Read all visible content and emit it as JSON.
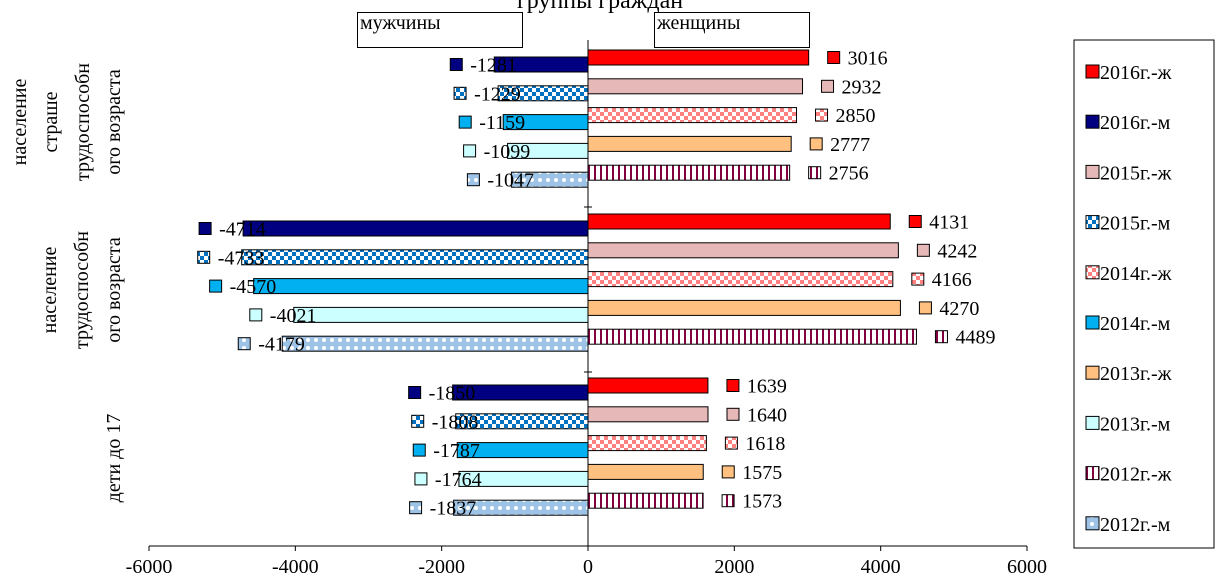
{
  "chart_data": {
    "type": "bar",
    "orientation": "horizontal",
    "title": "группы граждан",
    "header_labels": {
      "left": "мужчины",
      "right": "женщины"
    },
    "categories": [
      "население страше трудоспособн ого возраста",
      "население трудоспособн ого возраста",
      "дети до 17"
    ],
    "category_lines": [
      [
        "население",
        "страше",
        "трудоспособн",
        "ого возраста"
      ],
      [
        "население",
        "трудоспособн",
        "ого возраста"
      ],
      [
        "дети до 17"
      ]
    ],
    "xlim": [
      -6000,
      6000
    ],
    "x_ticks": [
      -6000,
      -4000,
      -2000,
      0,
      2000,
      4000,
      6000
    ],
    "legend_position": "right",
    "series": [
      {
        "name": "2016г.-ж",
        "color": "#ff0000",
        "pattern": "solid",
        "values": [
          3016,
          4131,
          1639
        ]
      },
      {
        "name": "2015г.-ж",
        "color": "#e6b8b8",
        "pattern": "solid",
        "values": [
          2932,
          4242,
          1640
        ]
      },
      {
        "name": "2014г.-ж",
        "color": "#ff8080",
        "pattern": "checker",
        "values": [
          2850,
          4166,
          1618
        ]
      },
      {
        "name": "2013г.-ж",
        "color": "#ffc080",
        "pattern": "solid",
        "values": [
          2777,
          4270,
          1575
        ]
      },
      {
        "name": "2012г.-ж",
        "color": "#800040",
        "pattern": "vstripes",
        "values": [
          2756,
          4489,
          1573
        ]
      },
      {
        "name": "2016г.-м",
        "color": "#000080",
        "pattern": "solid",
        "values": [
          -1281,
          -4714,
          -1850
        ]
      },
      {
        "name": "2015г.-м",
        "color": "#0070c0",
        "pattern": "checker",
        "values": [
          -1229,
          -4733,
          -1808
        ]
      },
      {
        "name": "2014г.-м",
        "color": "#00b0f0",
        "pattern": "solid",
        "values": [
          -1159,
          -4570,
          -1787
        ]
      },
      {
        "name": "2013г.-м",
        "color": "#ccffff",
        "pattern": "solid",
        "values": [
          -1099,
          -4021,
          -1764
        ]
      },
      {
        "name": "2012г.-м",
        "color": "#9dc3e6",
        "pattern": "dots",
        "values": [
          -1047,
          -4179,
          -1837
        ]
      }
    ],
    "legend_order": [
      "2016г.-ж",
      "2016г.-м",
      "2015г.-ж",
      "2015г.-м",
      "2014г.-ж",
      "2014г.-м",
      "2013г.-ж",
      "2013г.-м",
      "2012г.-ж",
      "2012г.-м"
    ]
  }
}
